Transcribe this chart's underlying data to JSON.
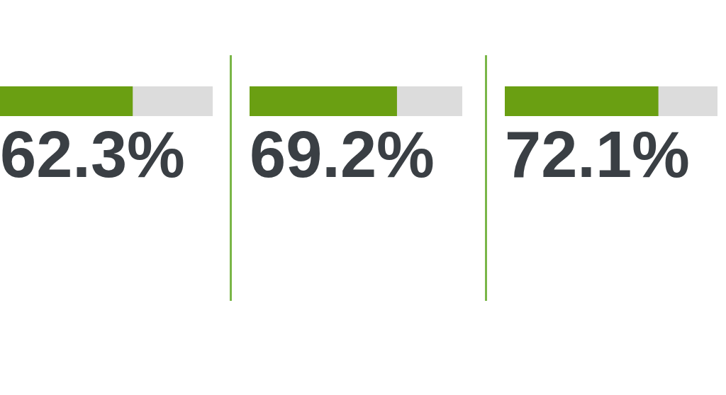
{
  "chart_data": [
    {
      "type": "bar",
      "orientation": "horizontal",
      "stacked": true,
      "categories": [
        null
      ],
      "xlim": [
        0,
        100
      ],
      "tick_labels": false,
      "series": [
        {
          "color": "#6a9f12",
          "values": [
            62.3
          ],
          "value_labels": [
            "62.3%"
          ]
        },
        {
          "color": "#dcdcdc",
          "values": [
            37.7
          ]
        }
      ]
    },
    {
      "type": "bar",
      "orientation": "horizontal",
      "stacked": true,
      "categories": [
        null
      ],
      "xlim": [
        0,
        100
      ],
      "tick_labels": false,
      "series": [
        {
          "color": "#6a9f12",
          "values": [
            69.2
          ],
          "value_labels": [
            "69.2%"
          ]
        },
        {
          "color": "#dcdcdc",
          "values": [
            30.8
          ]
        }
      ]
    },
    {
      "type": "bar",
      "orientation": "horizontal",
      "stacked": true,
      "categories": [
        null
      ],
      "xlim": [
        0,
        100
      ],
      "tick_labels": false,
      "series": [
        {
          "color": "#6a9f12",
          "values": [
            72.1
          ],
          "value_labels": [
            "72.1%"
          ]
        },
        {
          "color": "#dcdcdc",
          "values": [
            27.9
          ]
        }
      ]
    }
  ]
}
